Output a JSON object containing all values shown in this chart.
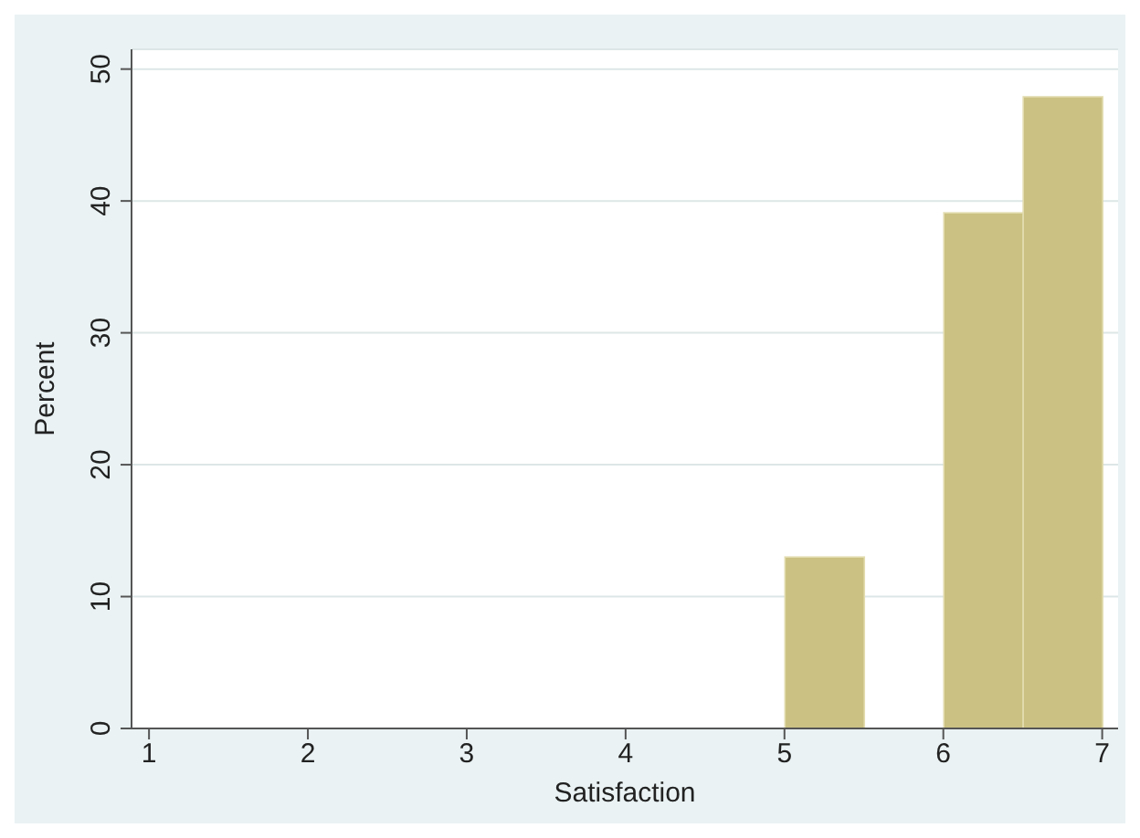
{
  "chart_data": {
    "type": "histogram",
    "xlabel": "Satisfaction",
    "ylabel": "Percent",
    "bins": [
      1,
      1.5,
      2,
      2.5,
      3,
      3.5,
      4,
      4.5,
      5,
      5.5,
      6,
      6.5,
      7
    ],
    "values": [
      0,
      0,
      0,
      0,
      0,
      0,
      0,
      0,
      13,
      0,
      39.1,
      47.9
    ],
    "color": "#cbc182",
    "xlim": [
      0.89,
      7.1
    ],
    "xticks": [
      1,
      2,
      3,
      4,
      5,
      6,
      7
    ],
    "ylim": [
      0,
      51.5
    ],
    "yticks": [
      0,
      10,
      20,
      30,
      40,
      50
    ],
    "grid": "y"
  }
}
